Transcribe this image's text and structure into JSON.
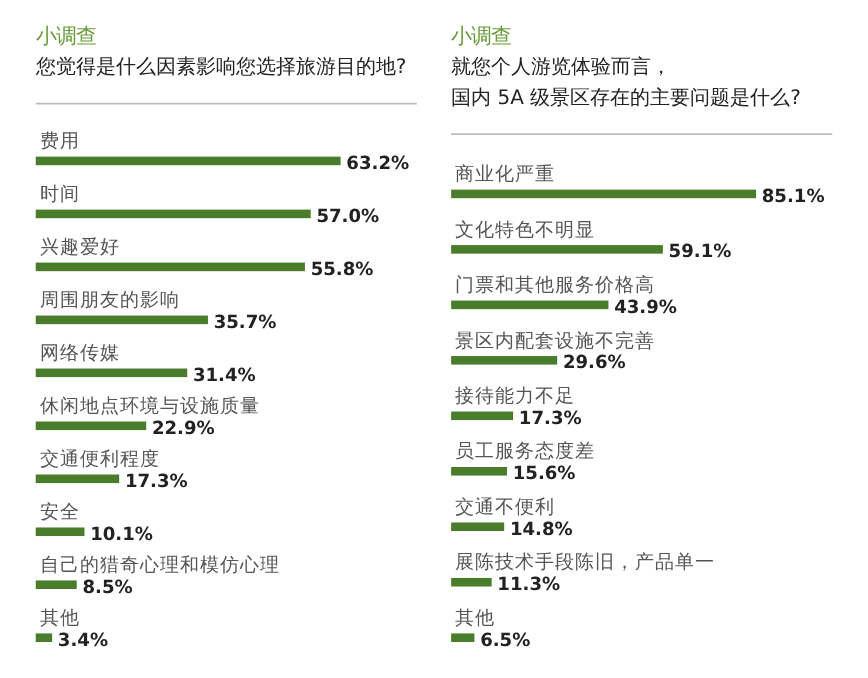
{
  "chart_data": [
    {
      "type": "bar",
      "orientation": "horizontal",
      "title": "小调查",
      "subtitle": "您觉得是什么因素影响您选择旅游目的地?",
      "categories": [
        "费用",
        "时间",
        "兴趣爱好",
        "周围朋友的影响",
        "网络传媒",
        "休闲地点环境与设施质量",
        "交通便利程度",
        "安全",
        "自己的猎奇心理和模仿心理",
        "其他"
      ],
      "values": [
        63.2,
        57.0,
        55.8,
        35.7,
        31.4,
        22.9,
        17.3,
        10.1,
        8.5,
        3.4
      ],
      "value_labels": [
        "63.2%",
        "57.0%",
        "55.8%",
        "35.7%",
        "31.4%",
        "22.9%",
        "17.3%",
        "10.1%",
        "8.5%",
        "3.4%"
      ],
      "color": "#4a7d2b"
    },
    {
      "type": "bar",
      "orientation": "horizontal",
      "title": "小调查",
      "subtitle": "就您个人游览体验而言，国内 5A 级景区存在的主要问题是什么?",
      "categories": [
        "商业化严重",
        "文化特色不明显",
        "门票和其他服务价格高",
        "景区内配套设施不完善",
        "接待能力不足",
        "员工服务态度差",
        "交通不便利",
        "展陈技术手段陈旧，产品单一",
        "其他"
      ],
      "values": [
        85.1,
        59.1,
        43.9,
        29.6,
        17.3,
        15.6,
        14.8,
        11.3,
        6.5
      ],
      "value_labels": [
        "85.1%",
        "59.1%",
        "43.9%",
        "29.6%",
        "17.3%",
        "15.6%",
        "14.8%",
        "11.3%",
        "6.5%"
      ],
      "color": "#4a7d2b"
    }
  ]
}
